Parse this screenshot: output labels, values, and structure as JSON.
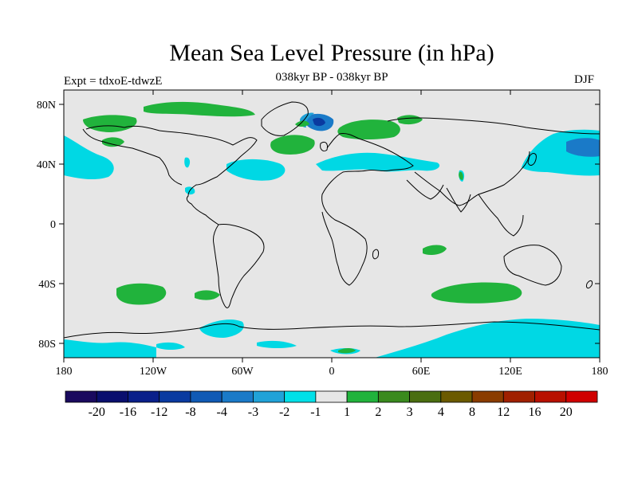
{
  "figure": {
    "title": "Mean Sea Level Pressure (in hPa)",
    "left_label": "Expt = tdxoE-tdwzE",
    "center_label": "038kyr BP - 038kyr BP",
    "right_label": "DJF"
  },
  "axes": {
    "lat_ticks": [
      "80N",
      "40N",
      "0",
      "40S",
      "80S"
    ],
    "lon_ticks": [
      "180",
      "120W",
      "60W",
      "0",
      "60E",
      "120E",
      "180"
    ]
  },
  "colorbar": {
    "labels": [
      "-20",
      "-16",
      "-12",
      "-8",
      "-4",
      "-3",
      "-2",
      "-1",
      "1",
      "2",
      "3",
      "4",
      "8",
      "12",
      "16",
      "20"
    ],
    "colors": [
      "#1a0a5e",
      "#0a0f6e",
      "#0a1f8a",
      "#0a3aa0",
      "#105ab5",
      "#1a7ac8",
      "#20a2d8",
      "#00e0e8",
      "#e6e6e6",
      "#21b33c",
      "#3a8a1e",
      "#4a6e10",
      "#6b5a00",
      "#8a3c00",
      "#a02000",
      "#b81000",
      "#d00000"
    ]
  },
  "colors": {
    "background": "#e6e6e6",
    "negative_anomaly": "#00d8e4",
    "strong_negative": "#1a7ac8",
    "positive_anomaly": "#21b33c",
    "coastline": "#000000"
  }
}
